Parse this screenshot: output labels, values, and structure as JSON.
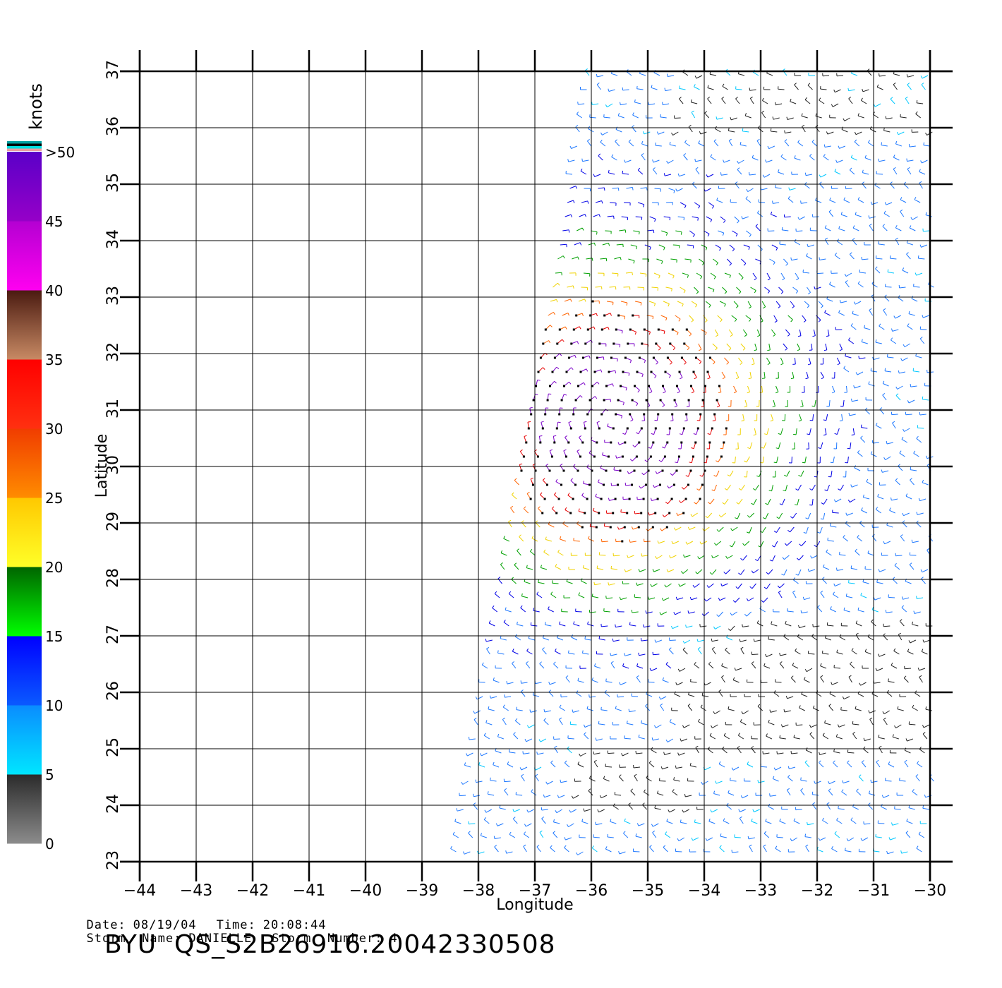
{
  "map": {
    "x_axis_label": "Longitude",
    "y_axis_label": "Latitude",
    "lon_ticks": [
      "-44",
      "-43",
      "-42",
      "-41",
      "-40",
      "-39",
      "-38",
      "-37",
      "-36",
      "-35",
      "-34",
      "-33",
      "-32",
      "-31",
      "-30"
    ],
    "lat_ticks": [
      "23",
      "24",
      "25",
      "26",
      "27",
      "28",
      "29",
      "30",
      "31",
      "32",
      "33",
      "34",
      "35",
      "36",
      "37"
    ],
    "lon_range": [
      -44,
      -30
    ],
    "lat_range": [
      23,
      37
    ],
    "grid": true,
    "swath_edges": [
      [
        -38.5,
        23
      ],
      [
        -36.1,
        37
      ],
      [
        -30,
        37
      ],
      [
        -30,
        23
      ]
    ],
    "storm_center": {
      "lon": -35.6,
      "lat": 30.8
    }
  },
  "colorbar": {
    "unit": "knots",
    "labels": [
      ">50",
      "45",
      "40",
      "35",
      "30",
      "25",
      "20",
      "15",
      "10",
      "5",
      "0"
    ],
    "bands": [
      {
        "from": 0,
        "to": 5,
        "top": "#2a2a2a",
        "bottom": "#8c8c8c"
      },
      {
        "from": 5,
        "to": 10,
        "top": "#0a8cff",
        "bottom": "#00e6ff"
      },
      {
        "from": 10,
        "to": 15,
        "top": "#0000ff",
        "bottom": "#0a5aff"
      },
      {
        "from": 15,
        "to": 20,
        "top": "#006400",
        "bottom": "#00ff00"
      },
      {
        "from": 20,
        "to": 25,
        "top": "#ffc800",
        "bottom": "#ffff28"
      },
      {
        "from": 25,
        "to": 30,
        "top": "#f03c00",
        "bottom": "#ff8c00"
      },
      {
        "from": 30,
        "to": 35,
        "top": "#ff0000",
        "bottom": "#ff3010"
      },
      {
        "from": 35,
        "to": 40,
        "top": "#4a1a10",
        "bottom": "#c88a64"
      },
      {
        "from": 40,
        "to": 45,
        "top": "#b400d2",
        "bottom": "#ff00f0"
      },
      {
        "from": 45,
        "to": 50,
        "top": "#5a00c8",
        "bottom": "#9600c8"
      }
    ],
    "overflow_swatches": [
      "#00a0a0",
      "#000000",
      "#00e0e0",
      "#e8a0a0"
    ]
  },
  "info": {
    "date_label": "Date:",
    "date_value": "08/19/04",
    "time_label": "Time:",
    "time_value": "20:08:44",
    "storm_name_label": "Storm  Name:",
    "storm_name_value": "DANIELLE",
    "storm_number_label": "Storm  Number:",
    "storm_number_value": "4",
    "product": "BYU  QS_S2B26916.20042330508"
  }
}
